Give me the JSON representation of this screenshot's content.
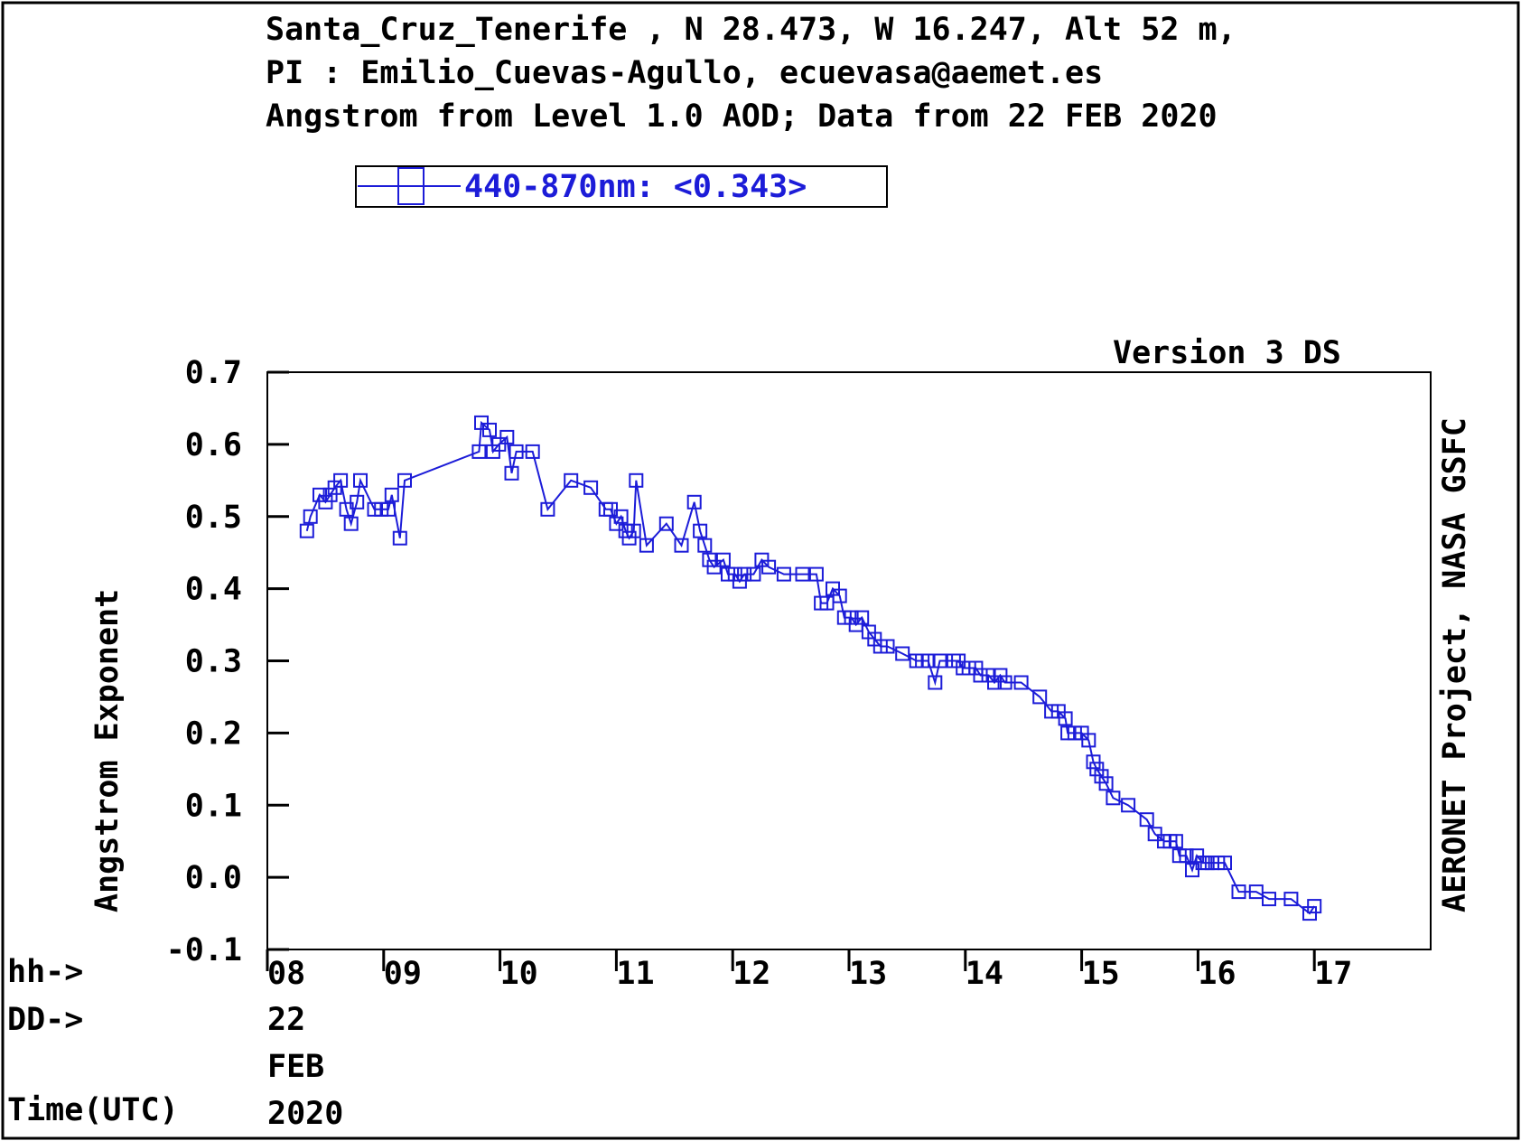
{
  "header": {
    "line1": "Santa_Cruz_Tenerife , N 28.473, W  16.247, Alt 52 m,",
    "line2": "PI : Emilio_Cuevas-Agullo, ecuevasa@aemet.es",
    "line3": "Angstrom from Level 1.0 AOD; Data from 22 FEB 2020"
  },
  "legend_label": "440-870nm: <0.343>",
  "version_label": "Version 3 DS",
  "credit": "AERONET Project, NASA GSFC",
  "axis_row_labels": {
    "hh": "hh->",
    "dd": "DD->",
    "time": "Time(UTC)",
    "day": "22",
    "month": "FEB",
    "year": "2020"
  },
  "colors": {
    "series": "#1c1cd8",
    "axis": "#000000",
    "background": "#ffffff"
  },
  "chart_data": {
    "type": "scatter",
    "title": "Angstrom from Level 1.0 AOD; Data from 22 FEB 2020",
    "xlabel": "Time(UTC)",
    "ylabel": "Angstrom Exponent",
    "xlim": [
      8,
      18
    ],
    "ylim": [
      -0.1,
      0.7
    ],
    "yticks": [
      {
        "v": 0.7,
        "label": "0.7"
      },
      {
        "v": 0.6,
        "label": "0.6"
      },
      {
        "v": 0.5,
        "label": "0.5"
      },
      {
        "v": 0.4,
        "label": "0.4"
      },
      {
        "v": 0.3,
        "label": "0.3"
      },
      {
        "v": 0.2,
        "label": "0.2"
      },
      {
        "v": 0.1,
        "label": "0.1"
      },
      {
        "v": 0.0,
        "label": "0.0"
      },
      {
        "v": -0.1,
        "label": "-0.1"
      }
    ],
    "xticks": [
      {
        "v": 8,
        "label": "08"
      },
      {
        "v": 9,
        "label": "09"
      },
      {
        "v": 10,
        "label": "10"
      },
      {
        "v": 11,
        "label": "11"
      },
      {
        "v": 12,
        "label": "12"
      },
      {
        "v": 13,
        "label": "13"
      },
      {
        "v": 14,
        "label": "14"
      },
      {
        "v": 15,
        "label": "15"
      },
      {
        "v": 16,
        "label": "16"
      },
      {
        "v": 17,
        "label": "17"
      }
    ],
    "legend_position": "top-left",
    "grid": false,
    "series": [
      {
        "name": "440-870nm: <0.343>",
        "marker": "open-square",
        "connected": true,
        "points": [
          [
            8.34,
            0.48
          ],
          [
            8.37,
            0.5
          ],
          [
            8.45,
            0.53
          ],
          [
            8.5,
            0.52
          ],
          [
            8.54,
            0.53
          ],
          [
            8.58,
            0.54
          ],
          [
            8.63,
            0.55
          ],
          [
            8.68,
            0.51
          ],
          [
            8.72,
            0.49
          ],
          [
            8.77,
            0.52
          ],
          [
            8.8,
            0.55
          ],
          [
            8.92,
            0.51
          ],
          [
            8.98,
            0.51
          ],
          [
            9.04,
            0.51
          ],
          [
            9.07,
            0.53
          ],
          [
            9.14,
            0.47
          ],
          [
            9.18,
            0.55
          ],
          [
            9.82,
            0.59
          ],
          [
            9.84,
            0.63
          ],
          [
            9.91,
            0.62
          ],
          [
            9.94,
            0.59
          ],
          [
            9.99,
            0.6
          ],
          [
            10.06,
            0.61
          ],
          [
            10.1,
            0.56
          ],
          [
            10.14,
            0.59
          ],
          [
            10.28,
            0.59
          ],
          [
            10.41,
            0.51
          ],
          [
            10.61,
            0.55
          ],
          [
            10.78,
            0.54
          ],
          [
            10.91,
            0.51
          ],
          [
            10.95,
            0.51
          ],
          [
            11.0,
            0.49
          ],
          [
            11.04,
            0.5
          ],
          [
            11.08,
            0.48
          ],
          [
            11.11,
            0.47
          ],
          [
            11.15,
            0.48
          ],
          [
            11.17,
            0.55
          ],
          [
            11.26,
            0.46
          ],
          [
            11.43,
            0.49
          ],
          [
            11.56,
            0.46
          ],
          [
            11.67,
            0.52
          ],
          [
            11.72,
            0.48
          ],
          [
            11.76,
            0.46
          ],
          [
            11.8,
            0.44
          ],
          [
            11.84,
            0.43
          ],
          [
            11.92,
            0.44
          ],
          [
            11.96,
            0.42
          ],
          [
            12.02,
            0.42
          ],
          [
            12.06,
            0.41
          ],
          [
            12.1,
            0.42
          ],
          [
            12.18,
            0.42
          ],
          [
            12.25,
            0.44
          ],
          [
            12.31,
            0.43
          ],
          [
            12.44,
            0.42
          ],
          [
            12.6,
            0.42
          ],
          [
            12.72,
            0.42
          ],
          [
            12.76,
            0.38
          ],
          [
            12.81,
            0.38
          ],
          [
            12.86,
            0.4
          ],
          [
            12.92,
            0.39
          ],
          [
            12.96,
            0.36
          ],
          [
            13.02,
            0.36
          ],
          [
            13.06,
            0.35
          ],
          [
            13.11,
            0.36
          ],
          [
            13.17,
            0.34
          ],
          [
            13.22,
            0.33
          ],
          [
            13.27,
            0.32
          ],
          [
            13.33,
            0.32
          ],
          [
            13.46,
            0.31
          ],
          [
            13.58,
            0.3
          ],
          [
            13.63,
            0.3
          ],
          [
            13.68,
            0.3
          ],
          [
            13.74,
            0.27
          ],
          [
            13.78,
            0.3
          ],
          [
            13.9,
            0.3
          ],
          [
            13.94,
            0.3
          ],
          [
            13.98,
            0.29
          ],
          [
            14.03,
            0.29
          ],
          [
            14.09,
            0.29
          ],
          [
            14.13,
            0.28
          ],
          [
            14.2,
            0.28
          ],
          [
            14.25,
            0.27
          ],
          [
            14.3,
            0.28
          ],
          [
            14.34,
            0.27
          ],
          [
            14.48,
            0.27
          ],
          [
            14.64,
            0.25
          ],
          [
            14.74,
            0.23
          ],
          [
            14.8,
            0.23
          ],
          [
            14.86,
            0.22
          ],
          [
            14.88,
            0.2
          ],
          [
            14.94,
            0.2
          ],
          [
            15.0,
            0.2
          ],
          [
            15.06,
            0.19
          ],
          [
            15.1,
            0.16
          ],
          [
            15.13,
            0.15
          ],
          [
            15.17,
            0.14
          ],
          [
            15.21,
            0.13
          ],
          [
            15.27,
            0.11
          ],
          [
            15.4,
            0.1
          ],
          [
            15.56,
            0.08
          ],
          [
            15.63,
            0.06
          ],
          [
            15.71,
            0.05
          ],
          [
            15.76,
            0.05
          ],
          [
            15.81,
            0.05
          ],
          [
            15.84,
            0.03
          ],
          [
            15.9,
            0.03
          ],
          [
            15.95,
            0.01
          ],
          [
            15.99,
            0.03
          ],
          [
            16.04,
            0.02
          ],
          [
            16.08,
            0.02
          ],
          [
            16.12,
            0.02
          ],
          [
            16.17,
            0.02
          ],
          [
            16.23,
            0.02
          ],
          [
            16.35,
            -0.02
          ],
          [
            16.5,
            -0.02
          ],
          [
            16.61,
            -0.03
          ],
          [
            16.8,
            -0.03
          ],
          [
            16.96,
            -0.05
          ],
          [
            17.0,
            -0.04
          ]
        ]
      }
    ]
  }
}
